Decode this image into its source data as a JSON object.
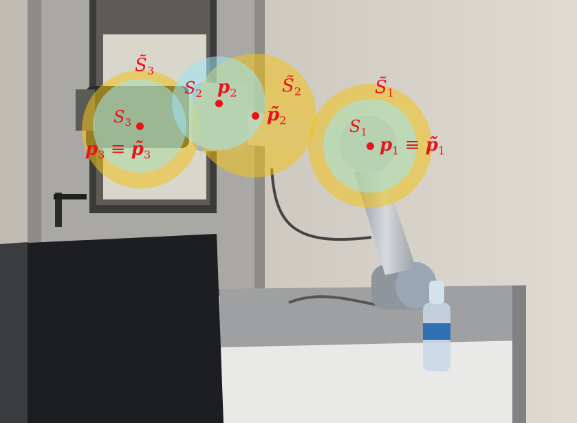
{
  "labels": {
    "s3_tilde": "S̃",
    "s3_tilde_sub": "3",
    "s2_plain": "S",
    "s2_plain_sub": "2",
    "p2": "p",
    "p2_sub": "2",
    "s2_tilde": "S̃",
    "s2_tilde_sub": "2",
    "s1_tilde": "S̃",
    "s1_tilde_sub": "1",
    "s3_plain": "S",
    "s3_plain_sub": "3",
    "p2_tilde": "p̃",
    "p2_tilde_sub": "2",
    "s1_plain": "S",
    "s1_plain_sub": "1",
    "p3_eq": "p",
    "p3_eq_sub": "3",
    "equiv": " ≡ ",
    "p3_eq_tilde": "p̃",
    "p3_eq_tilde_sub": "3",
    "p1_eq": "p",
    "p1_eq_sub": "1",
    "p1_eq_tilde": "p̃",
    "p1_eq_tilde_sub": "1"
  },
  "colors": {
    "label": "#e8141c",
    "outer_sphere": "#f3c21a",
    "inner_sphere": "#9fe6f2",
    "robot_arm": "#b9bec4",
    "wall": "#d8d4cc",
    "door": "#a9a8a4",
    "pc_case": "#1d1e21"
  }
}
